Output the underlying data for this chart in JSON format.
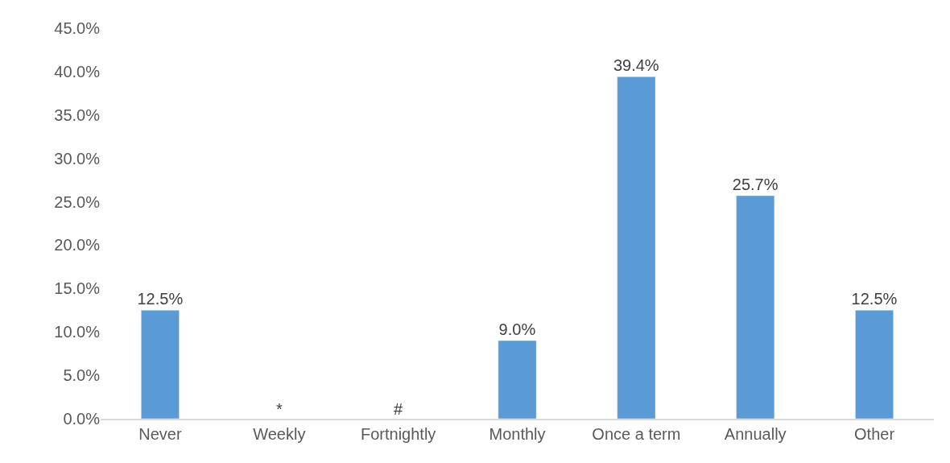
{
  "chart_data": {
    "type": "bar",
    "categories": [
      "Never",
      "Weekly",
      "Fortnightly",
      "Monthly",
      "Once a term",
      "Annually",
      "Other"
    ],
    "values": [
      12.5,
      null,
      null,
      9.0,
      39.4,
      25.7,
      12.5
    ],
    "value_labels": [
      "12.5%",
      "*",
      "#",
      "9.0%",
      "39.4%",
      "25.7%",
      "12.5%"
    ],
    "color": "#5b9bd5",
    "ylim": [
      0,
      45
    ],
    "yticks": [
      {
        "value": 0,
        "label": "0.0%"
      },
      {
        "value": 5,
        "label": "5.0%"
      },
      {
        "value": 10,
        "label": "10.0%"
      },
      {
        "value": 15,
        "label": "15.0%"
      },
      {
        "value": 20,
        "label": "20.0%"
      },
      {
        "value": 25,
        "label": "25.0%"
      },
      {
        "value": 30,
        "label": "30.0%"
      },
      {
        "value": 35,
        "label": "35.0%"
      },
      {
        "value": 40,
        "label": "40.0%"
      },
      {
        "value": 45,
        "label": "45.0%"
      }
    ],
    "legend": false
  }
}
